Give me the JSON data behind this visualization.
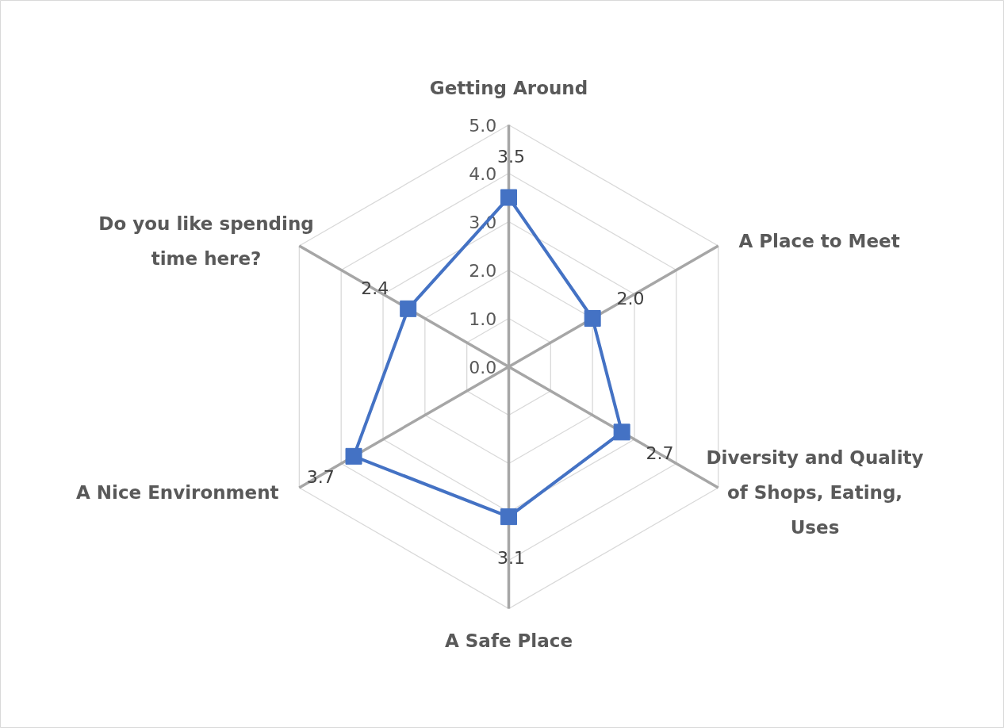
{
  "chart_data": {
    "type": "radar",
    "categories": [
      "Getting Around",
      "A Place to Meet",
      "Diversity and Quality of Shops, Eating, Uses",
      "A Safe Place",
      "A Nice Environment",
      "Do you like spending time here?"
    ],
    "series": [
      {
        "color": "#4472c4",
        "values": [
          3.5,
          2.0,
          2.7,
          3.1,
          3.7,
          2.4
        ],
        "value_labels": [
          "3.5",
          "2.0",
          "2.7",
          "3.1",
          "3.7",
          "2.4"
        ]
      }
    ],
    "ylim": [
      0,
      5
    ],
    "yticks": [
      {
        "value": 0,
        "label": "0.0"
      },
      {
        "value": 1,
        "label": "1.0"
      },
      {
        "value": 2,
        "label": "2.0"
      },
      {
        "value": 3,
        "label": "3.0"
      },
      {
        "value": 4,
        "label": "4.0"
      },
      {
        "value": 5,
        "label": "5.0"
      }
    ],
    "grid": true,
    "marker": "square",
    "line_style": "solid"
  }
}
